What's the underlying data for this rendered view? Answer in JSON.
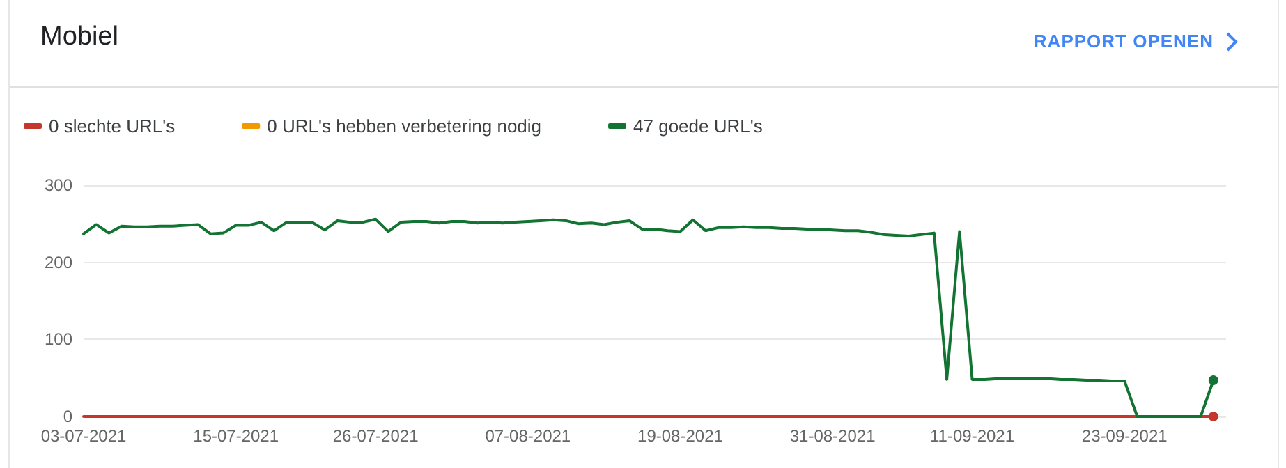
{
  "chart_data": {
    "type": "line",
    "title": "Mobiel",
    "annotations": [
      "RAPPORT OPENEN"
    ],
    "x": [
      "2021-07-03",
      "2021-07-04",
      "2021-07-05",
      "2021-07-06",
      "2021-07-07",
      "2021-07-08",
      "2021-07-09",
      "2021-07-10",
      "2021-07-11",
      "2021-07-12",
      "2021-07-13",
      "2021-07-14",
      "2021-07-15",
      "2021-07-16",
      "2021-07-17",
      "2021-07-18",
      "2021-07-19",
      "2021-07-20",
      "2021-07-21",
      "2021-07-22",
      "2021-07-23",
      "2021-07-24",
      "2021-07-25",
      "2021-07-26",
      "2021-07-27",
      "2021-07-28",
      "2021-07-29",
      "2021-07-30",
      "2021-07-31",
      "2021-08-01",
      "2021-08-02",
      "2021-08-03",
      "2021-08-04",
      "2021-08-05",
      "2021-08-06",
      "2021-08-07",
      "2021-08-08",
      "2021-08-09",
      "2021-08-10",
      "2021-08-11",
      "2021-08-12",
      "2021-08-13",
      "2021-08-14",
      "2021-08-15",
      "2021-08-16",
      "2021-08-17",
      "2021-08-18",
      "2021-08-19",
      "2021-08-20",
      "2021-08-21",
      "2021-08-22",
      "2021-08-23",
      "2021-08-24",
      "2021-08-25",
      "2021-08-26",
      "2021-08-27",
      "2021-08-28",
      "2021-08-29",
      "2021-08-30",
      "2021-08-31",
      "2021-09-01",
      "2021-09-02",
      "2021-09-03",
      "2021-09-04",
      "2021-09-05",
      "2021-09-06",
      "2021-09-07",
      "2021-09-08",
      "2021-09-09",
      "2021-09-10",
      "2021-09-11",
      "2021-09-12",
      "2021-09-13",
      "2021-09-14",
      "2021-09-15",
      "2021-09-16",
      "2021-09-17",
      "2021-09-18",
      "2021-09-19",
      "2021-09-20",
      "2021-09-21",
      "2021-09-22",
      "2021-09-23",
      "2021-09-24",
      "2021-09-25",
      "2021-09-26",
      "2021-09-27",
      "2021-09-28",
      "2021-09-29",
      "2021-09-30"
    ],
    "series": [
      {
        "name": "0 slechte URL's",
        "color": "#c5372c",
        "values": [
          0,
          0,
          0,
          0,
          0,
          0,
          0,
          0,
          0,
          0,
          0,
          0,
          0,
          0,
          0,
          0,
          0,
          0,
          0,
          0,
          0,
          0,
          0,
          0,
          0,
          0,
          0,
          0,
          0,
          0,
          0,
          0,
          0,
          0,
          0,
          0,
          0,
          0,
          0,
          0,
          0,
          0,
          0,
          0,
          0,
          0,
          0,
          0,
          0,
          0,
          0,
          0,
          0,
          0,
          0,
          0,
          0,
          0,
          0,
          0,
          0,
          0,
          0,
          0,
          0,
          0,
          0,
          0,
          0,
          0,
          0,
          0,
          0,
          0,
          0,
          0,
          0,
          0,
          0,
          0,
          0,
          0,
          0,
          0,
          0,
          0,
          0,
          0,
          0,
          0
        ]
      },
      {
        "name": "0 URL's hebben verbetering nodig",
        "color": "#f29900",
        "values": [
          null,
          null,
          null,
          null,
          null,
          null,
          null,
          null,
          null,
          null,
          null,
          null,
          null,
          null,
          null,
          null,
          null,
          null,
          null,
          null,
          null,
          null,
          null,
          null,
          null,
          null,
          null,
          null,
          null,
          null,
          null,
          null,
          null,
          null,
          null,
          null,
          null,
          null,
          null,
          null,
          null,
          null,
          null,
          null,
          null,
          null,
          null,
          null,
          null,
          null,
          null,
          null,
          null,
          null,
          null,
          null,
          null,
          null,
          null,
          null,
          null,
          null,
          null,
          null,
          null,
          null,
          null,
          null,
          null,
          null,
          null,
          null,
          null,
          null,
          null,
          null,
          null,
          null,
          null,
          null,
          null,
          null,
          null,
          null,
          null,
          null,
          null,
          null,
          null,
          null
        ]
      },
      {
        "name": "47 goede URL's",
        "color": "#137333",
        "values": [
          237,
          249,
          238,
          247,
          246,
          246,
          247,
          247,
          248,
          249,
          237,
          238,
          248,
          248,
          252,
          241,
          252,
          252,
          252,
          242,
          254,
          252,
          252,
          256,
          240,
          252,
          253,
          253,
          251,
          253,
          253,
          251,
          252,
          251,
          252,
          253,
          254,
          255,
          254,
          250,
          251,
          249,
          252,
          254,
          243,
          243,
          241,
          240,
          255,
          241,
          245,
          245,
          246,
          245,
          245,
          244,
          244,
          243,
          243,
          242,
          241,
          241,
          239,
          236,
          235,
          234,
          236,
          238,
          48,
          240,
          48,
          48,
          49,
          49,
          49,
          49,
          49,
          48,
          48,
          47,
          47,
          46,
          46,
          0,
          0,
          0,
          0,
          0,
          0,
          47
        ]
      }
    ],
    "xlim": [
      "2021-07-03",
      "2021-10-01"
    ],
    "xticks": [
      {
        "value": "2021-07-03",
        "label": "03-07-2021"
      },
      {
        "value": "2021-07-15",
        "label": "15-07-2021"
      },
      {
        "value": "2021-07-26",
        "label": "26-07-2021"
      },
      {
        "value": "2021-08-07",
        "label": "07-08-2021"
      },
      {
        "value": "2021-08-19",
        "label": "19-08-2021"
      },
      {
        "value": "2021-08-31",
        "label": "31-08-2021"
      },
      {
        "value": "2021-09-11",
        "label": "11-09-2021"
      },
      {
        "value": "2021-09-23",
        "label": "23-09-2021"
      }
    ],
    "ylim": [
      0,
      300
    ],
    "yticks": [
      0,
      100,
      200,
      300
    ],
    "grid": "y",
    "legend": "top left",
    "line_style": "solid"
  }
}
